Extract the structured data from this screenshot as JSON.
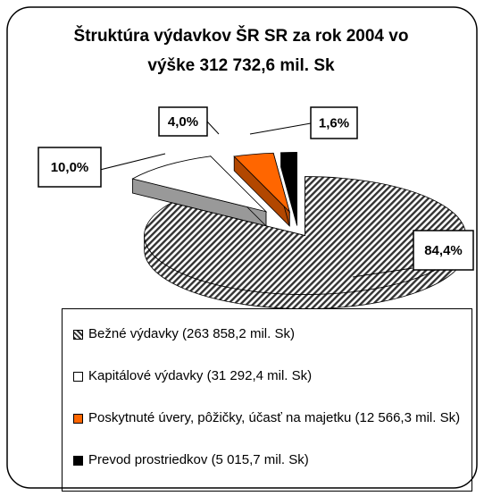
{
  "chart_data": {
    "type": "pie",
    "title": "Štruktúra výdavkov ŠR SR za rok 2004 vo výške 312 732,6 mil. Sk",
    "categories": [
      "Bežné výdavky (263 858,2 mil. Sk)",
      "Kapitálové výdavky (31 292,4 mil. Sk)",
      "Poskytnuté úvery, pôžičky, účasť na majetku (12 566,3 mil. Sk)",
      "Prevod prostriedkov (5 015,7 mil. Sk)"
    ],
    "values": [
      84.4,
      10.0,
      4.0,
      1.6
    ],
    "value_labels": [
      "84,4%",
      "10,0%",
      "4,0%",
      "1,6%"
    ],
    "colors": [
      "#333333",
      "#ffffff",
      "#ff6600",
      "#000000"
    ],
    "legend": "bottom"
  }
}
